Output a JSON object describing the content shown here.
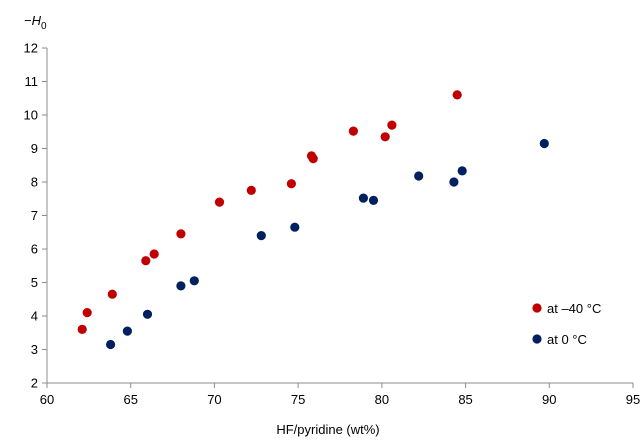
{
  "chart_data": {
    "type": "scatter",
    "title": "",
    "xlabel": "HF/pyridine (wt%)",
    "ylabel_main": "−H",
    "ylabel_sub": "0",
    "xlim": [
      60,
      95
    ],
    "ylim": [
      2,
      12
    ],
    "x_ticks": [
      "60",
      "65",
      "70",
      "75",
      "80",
      "85",
      "90",
      "95"
    ],
    "y_ticks": [
      "2",
      "3",
      "4",
      "5",
      "6",
      "7",
      "8",
      "9",
      "10",
      "11",
      "12"
    ],
    "grid": false,
    "legend_position": "bottom-right",
    "series": [
      {
        "name": "at –40 °C",
        "color": "#c00000",
        "points": [
          [
            62.1,
            3.6
          ],
          [
            62.4,
            4.1
          ],
          [
            63.9,
            4.65
          ],
          [
            65.9,
            5.65
          ],
          [
            66.4,
            5.85
          ],
          [
            68.0,
            6.45
          ],
          [
            70.3,
            7.4
          ],
          [
            72.2,
            7.75
          ],
          [
            74.6,
            7.95
          ],
          [
            75.8,
            8.78
          ],
          [
            75.9,
            8.7
          ],
          [
            78.3,
            9.52
          ],
          [
            80.2,
            9.35
          ],
          [
            80.6,
            9.7
          ],
          [
            84.5,
            10.6
          ]
        ]
      },
      {
        "name": "at 0 °C",
        "color": "#002060",
        "points": [
          [
            63.8,
            3.15
          ],
          [
            64.8,
            3.55
          ],
          [
            66.0,
            4.05
          ],
          [
            68.0,
            4.9
          ],
          [
            68.8,
            5.05
          ],
          [
            72.8,
            6.4
          ],
          [
            74.8,
            6.65
          ],
          [
            78.9,
            7.52
          ],
          [
            79.5,
            7.45
          ],
          [
            82.2,
            8.18
          ],
          [
            84.3,
            8.0
          ],
          [
            84.8,
            8.33
          ],
          [
            89.7,
            9.15
          ]
        ]
      }
    ]
  }
}
